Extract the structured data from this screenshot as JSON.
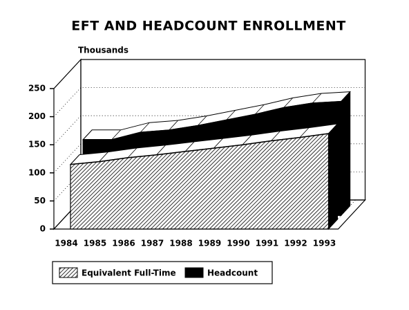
{
  "chart_data": {
    "type": "area3d",
    "title": "EFT AND HEADCOUNT ENROLLMENT",
    "y_label": "Thousands",
    "categories": [
      "1984",
      "1985",
      "1986",
      "1987",
      "1988",
      "1989",
      "1990",
      "1991",
      "1992",
      "1993"
    ],
    "series": [
      {
        "name": "Equivalent Full-Time",
        "color": "#000000",
        "fill": "hatch",
        "values": [
          115,
          120,
          127,
          132,
          138,
          144,
          150,
          157,
          163,
          170
        ]
      },
      {
        "name": "Headcount",
        "color": "#000000",
        "fill": "solid",
        "values": [
          135,
          135,
          148,
          152,
          160,
          170,
          180,
          192,
          200,
          203
        ]
      }
    ],
    "ylim": [
      0,
      250
    ],
    "yticks": [
      0,
      50,
      100,
      150,
      200,
      250
    ],
    "grid": true
  }
}
